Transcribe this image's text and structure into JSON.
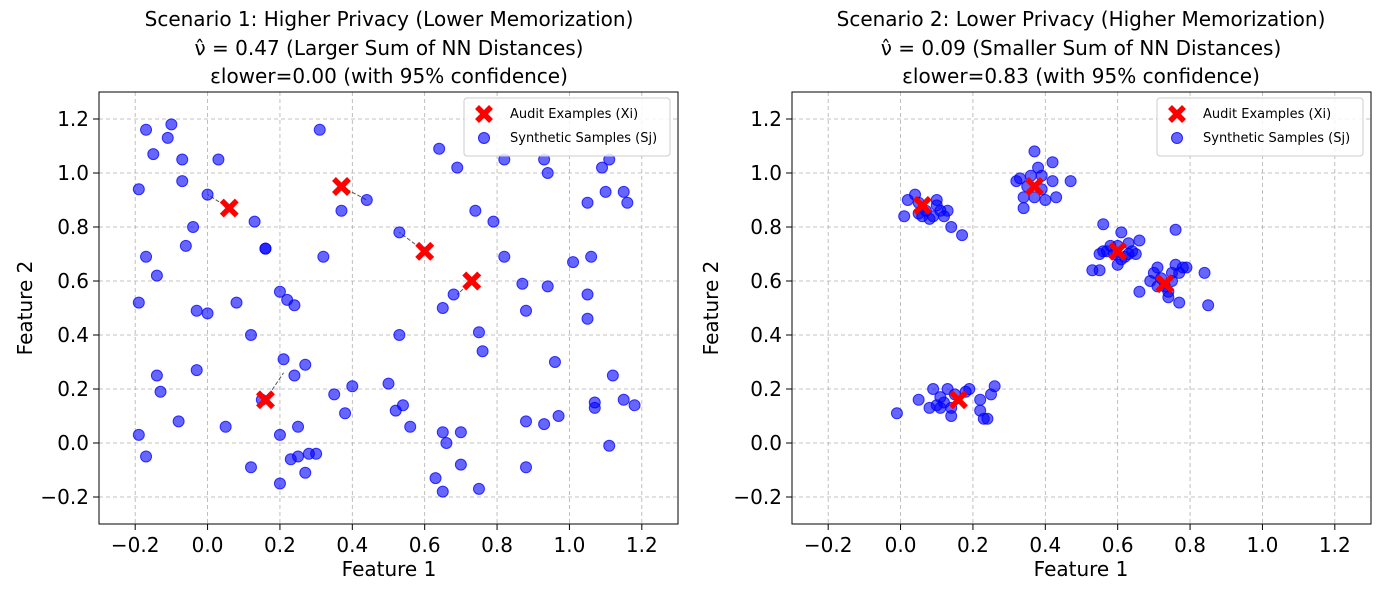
{
  "chart_data": [
    {
      "type": "scatter",
      "title": [
        "Scenario 1: Higher Privacy (Lower Memorization)",
        "ν̂ = 0.47 (Larger Sum of NN Distances)",
        "εlower=0.00 (with 95% confidence)"
      ],
      "xlabel": "Feature 1",
      "ylabel": "Feature 2",
      "xlim": [
        -0.3,
        1.3
      ],
      "ylim": [
        -0.3,
        1.3
      ],
      "xticks": [
        "−0.2",
        "0.0",
        "0.2",
        "0.4",
        "0.6",
        "0.8",
        "1.0",
        "1.2"
      ],
      "yticks": [
        "−0.2",
        "0.0",
        "0.2",
        "0.4",
        "0.6",
        "0.8",
        "1.0",
        "1.2"
      ],
      "grid": true,
      "legend_position": "top-right",
      "series": [
        {
          "name": "Audit Examples (Xi)",
          "marker": "x",
          "color": "#ff0000",
          "points": [
            [
              0.06,
              0.87
            ],
            [
              0.37,
              0.95
            ],
            [
              0.6,
              0.71
            ],
            [
              0.73,
              0.6
            ],
            [
              0.16,
              0.16
            ]
          ]
        },
        {
          "name": "Synthetic Samples (Sj)",
          "marker": "circle",
          "color": "#0000ff",
          "points": [
            [
              -0.19,
              0.94
            ],
            [
              -0.17,
              1.16
            ],
            [
              -0.15,
              1.07
            ],
            [
              -0.11,
              1.13
            ],
            [
              -0.1,
              1.18
            ],
            [
              -0.07,
              0.97
            ],
            [
              -0.07,
              1.05
            ],
            [
              0.0,
              0.92
            ],
            [
              0.03,
              1.05
            ],
            [
              -0.04,
              0.8
            ],
            [
              -0.06,
              0.73
            ],
            [
              0.13,
              0.82
            ],
            [
              0.16,
              0.72
            ],
            [
              0.16,
              0.72
            ],
            [
              0.31,
              1.16
            ],
            [
              0.37,
              0.86
            ],
            [
              0.44,
              0.9
            ],
            [
              0.53,
              0.78
            ],
            [
              0.64,
              1.09
            ],
            [
              0.69,
              1.02
            ],
            [
              0.82,
              1.05
            ],
            [
              0.93,
              1.05
            ],
            [
              0.94,
              1.0
            ],
            [
              1.09,
              1.02
            ],
            [
              1.11,
              1.05
            ],
            [
              1.15,
              0.93
            ],
            [
              1.16,
              0.89
            ],
            [
              1.05,
              0.89
            ],
            [
              1.1,
              0.93
            ],
            [
              0.74,
              0.86
            ],
            [
              0.79,
              0.82
            ],
            [
              0.82,
              0.69
            ],
            [
              -0.17,
              0.69
            ],
            [
              -0.14,
              0.62
            ],
            [
              -0.19,
              0.52
            ],
            [
              -0.03,
              0.49
            ],
            [
              0.0,
              0.48
            ],
            [
              0.08,
              0.52
            ],
            [
              0.2,
              0.56
            ],
            [
              0.22,
              0.53
            ],
            [
              0.24,
              0.51
            ],
            [
              0.32,
              0.69
            ],
            [
              1.01,
              0.67
            ],
            [
              1.06,
              0.69
            ],
            [
              1.05,
              0.55
            ],
            [
              1.05,
              0.46
            ],
            [
              0.87,
              0.59
            ],
            [
              0.88,
              0.49
            ],
            [
              0.94,
              0.58
            ],
            [
              0.68,
              0.55
            ],
            [
              0.65,
              0.5
            ],
            [
              0.75,
              0.41
            ],
            [
              0.76,
              0.34
            ],
            [
              0.12,
              0.4
            ],
            [
              0.53,
              0.4
            ],
            [
              0.96,
              0.3
            ],
            [
              -0.14,
              0.25
            ],
            [
              -0.13,
              0.19
            ],
            [
              -0.03,
              0.27
            ],
            [
              0.21,
              0.31
            ],
            [
              0.24,
              0.25
            ],
            [
              0.27,
              0.29
            ],
            [
              0.15,
              0.16
            ],
            [
              0.35,
              0.18
            ],
            [
              0.4,
              0.21
            ],
            [
              0.5,
              0.22
            ],
            [
              0.38,
              0.11
            ],
            [
              0.52,
              0.12
            ],
            [
              0.54,
              0.14
            ],
            [
              0.56,
              0.06
            ],
            [
              0.05,
              0.06
            ],
            [
              0.25,
              0.06
            ],
            [
              0.2,
              0.03
            ],
            [
              -0.08,
              0.08
            ],
            [
              -0.19,
              0.03
            ],
            [
              -0.17,
              -0.05
            ],
            [
              0.23,
              -0.06
            ],
            [
              0.25,
              -0.05
            ],
            [
              0.27,
              -0.11
            ],
            [
              0.28,
              -0.04
            ],
            [
              0.3,
              -0.04
            ],
            [
              0.12,
              -0.09
            ],
            [
              0.2,
              -0.15
            ],
            [
              0.65,
              0.04
            ],
            [
              0.66,
              0.0
            ],
            [
              0.7,
              0.04
            ],
            [
              0.7,
              -0.08
            ],
            [
              0.63,
              -0.13
            ],
            [
              0.65,
              -0.18
            ],
            [
              0.75,
              -0.17
            ],
            [
              0.88,
              0.08
            ],
            [
              0.88,
              -0.09
            ],
            [
              0.93,
              0.07
            ],
            [
              0.97,
              0.1
            ],
            [
              1.07,
              0.15
            ],
            [
              1.07,
              0.13
            ],
            [
              1.11,
              -0.01
            ],
            [
              1.12,
              0.25
            ],
            [
              1.15,
              0.16
            ],
            [
              1.18,
              0.14
            ]
          ]
        }
      ],
      "nn_links": [
        [
          [
            0.06,
            0.87
          ],
          [
            0.0,
            0.92
          ]
        ],
        [
          [
            0.37,
            0.95
          ],
          [
            0.44,
            0.9
          ]
        ],
        [
          [
            0.6,
            0.71
          ],
          [
            0.53,
            0.78
          ]
        ],
        [
          [
            0.73,
            0.6
          ],
          [
            0.69,
            0.55
          ]
        ],
        [
          [
            0.16,
            0.16
          ],
          [
            0.21,
            0.26
          ]
        ]
      ]
    },
    {
      "type": "scatter",
      "title": [
        "Scenario 2: Lower Privacy (Higher Memorization)",
        "ν̂ = 0.09 (Smaller Sum of NN Distances)",
        "εlower=0.83 (with 95% confidence)"
      ],
      "xlabel": "Feature 1",
      "ylabel": "Feature 2",
      "xlim": [
        -0.3,
        1.3
      ],
      "ylim": [
        -0.3,
        1.3
      ],
      "xticks": [
        "−0.2",
        "0.0",
        "0.2",
        "0.4",
        "0.6",
        "0.8",
        "1.0",
        "1.2"
      ],
      "yticks": [
        "−0.2",
        "0.0",
        "0.2",
        "0.4",
        "0.6",
        "0.8",
        "1.0",
        "1.2"
      ],
      "grid": true,
      "legend_position": "top-right",
      "series": [
        {
          "name": "Audit Examples (Xi)",
          "marker": "x",
          "color": "#ff0000",
          "points": [
            [
              0.06,
              0.88
            ],
            [
              0.37,
              0.95
            ],
            [
              0.6,
              0.71
            ],
            [
              0.73,
              0.59
            ],
            [
              0.16,
              0.16
            ]
          ]
        },
        {
          "name": "Synthetic Samples (Sj)",
          "marker": "circle",
          "color": "#0000ff",
          "points": [
            [
              0.01,
              0.84
            ],
            [
              0.02,
              0.9
            ],
            [
              0.04,
              0.92
            ],
            [
              0.05,
              0.85
            ],
            [
              0.06,
              0.84
            ],
            [
              0.07,
              0.86
            ],
            [
              0.08,
              0.83
            ],
            [
              0.1,
              0.9
            ],
            [
              0.1,
              0.88
            ],
            [
              0.11,
              0.86
            ],
            [
              0.12,
              0.84
            ],
            [
              0.13,
              0.86
            ],
            [
              0.14,
              0.8
            ],
            [
              0.17,
              0.77
            ],
            [
              0.09,
              0.84
            ],
            [
              0.05,
              0.89
            ],
            [
              0.32,
              0.97
            ],
            [
              0.33,
              0.98
            ],
            [
              0.34,
              0.91
            ],
            [
              0.34,
              0.87
            ],
            [
              0.36,
              0.99
            ],
            [
              0.37,
              1.08
            ],
            [
              0.38,
              1.02
            ],
            [
              0.39,
              0.99
            ],
            [
              0.39,
              0.94
            ],
            [
              0.4,
              0.9
            ],
            [
              0.42,
              1.04
            ],
            [
              0.42,
              0.97
            ],
            [
              0.43,
              0.91
            ],
            [
              0.47,
              0.97
            ],
            [
              0.37,
              0.91
            ],
            [
              0.35,
              0.95
            ],
            [
              0.53,
              0.64
            ],
            [
              0.55,
              0.64
            ],
            [
              0.55,
              0.7
            ],
            [
              0.56,
              0.81
            ],
            [
              0.56,
              0.71
            ],
            [
              0.57,
              0.71
            ],
            [
              0.58,
              0.73
            ],
            [
              0.59,
              0.7
            ],
            [
              0.6,
              0.66
            ],
            [
              0.61,
              0.68
            ],
            [
              0.61,
              0.78
            ],
            [
              0.62,
              0.69
            ],
            [
              0.63,
              0.7
            ],
            [
              0.63,
              0.74
            ],
            [
              0.64,
              0.71
            ],
            [
              0.65,
              0.7
            ],
            [
              0.66,
              0.75
            ],
            [
              0.6,
              0.73
            ],
            [
              0.66,
              0.56
            ],
            [
              0.69,
              0.6
            ],
            [
              0.7,
              0.63
            ],
            [
              0.71,
              0.65
            ],
            [
              0.72,
              0.61
            ],
            [
              0.73,
              0.58
            ],
            [
              0.74,
              0.54
            ],
            [
              0.74,
              0.56
            ],
            [
              0.75,
              0.6
            ],
            [
              0.75,
              0.63
            ],
            [
              0.76,
              0.79
            ],
            [
              0.76,
              0.66
            ],
            [
              0.77,
              0.52
            ],
            [
              0.77,
              0.63
            ],
            [
              0.78,
              0.65
            ],
            [
              0.79,
              0.65
            ],
            [
              0.84,
              0.63
            ],
            [
              0.85,
              0.51
            ],
            [
              0.71,
              0.58
            ],
            [
              -0.01,
              0.11
            ],
            [
              0.05,
              0.16
            ],
            [
              0.08,
              0.13
            ],
            [
              0.09,
              0.2
            ],
            [
              0.1,
              0.14
            ],
            [
              0.11,
              0.17
            ],
            [
              0.12,
              0.15
            ],
            [
              0.13,
              0.2
            ],
            [
              0.14,
              0.13
            ],
            [
              0.14,
              0.1
            ],
            [
              0.15,
              0.18
            ],
            [
              0.18,
              0.19
            ],
            [
              0.19,
              0.2
            ],
            [
              0.22,
              0.16
            ],
            [
              0.22,
              0.12
            ],
            [
              0.23,
              0.09
            ],
            [
              0.24,
              0.09
            ],
            [
              0.25,
              0.18
            ],
            [
              0.26,
              0.21
            ],
            [
              0.11,
              0.13
            ]
          ]
        }
      ],
      "nn_links": []
    }
  ]
}
